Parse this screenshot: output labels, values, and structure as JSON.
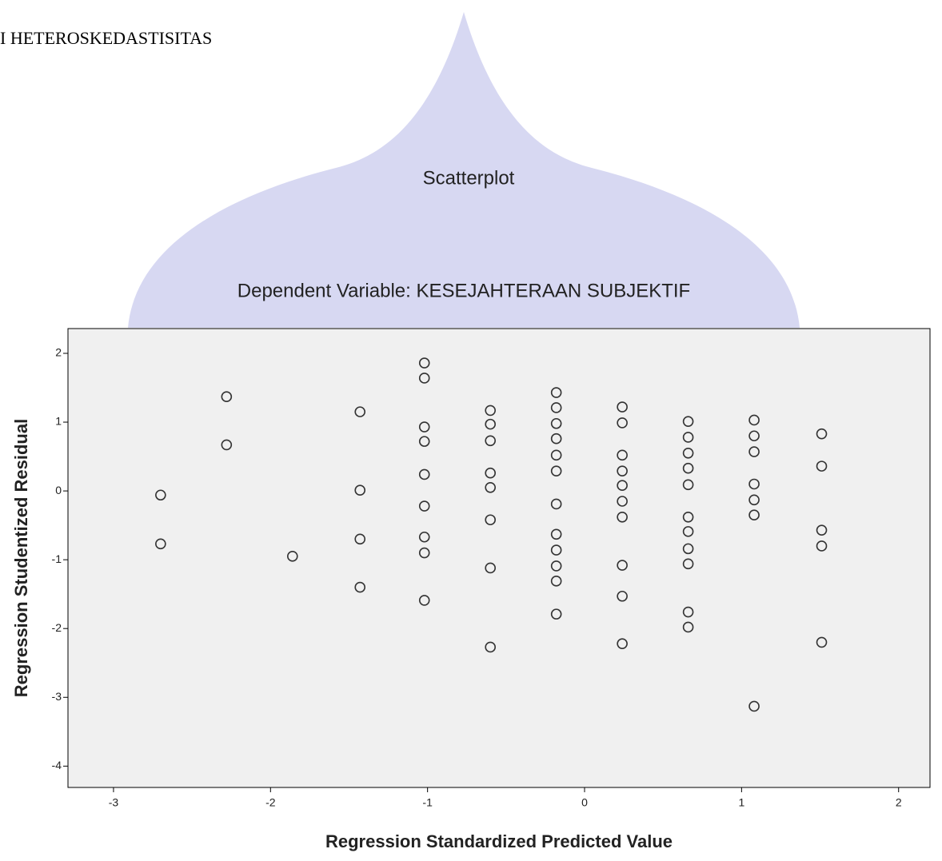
{
  "heading": "I HETEROSKEDASTISITAS",
  "chart_data": {
    "type": "scatter",
    "title": "Scatterplot",
    "subtitle": "Dependent Variable: KESEJAHTERAAN SUBJEKTIF",
    "x_label": "Regression Standardized Predicted Value",
    "y_label": "Regression Studentized Residual",
    "color": "#333333",
    "x": [
      -2.7,
      -2.7,
      -2.28,
      -2.28,
      -1.86,
      -1.43,
      -1.43,
      -1.43,
      -1.43,
      -1.02,
      -1.02,
      -1.02,
      -1.02,
      -1.02,
      -1.02,
      -1.02,
      -1.02,
      -1.02,
      -0.6,
      -0.6,
      -0.6,
      -0.6,
      -0.6,
      -0.6,
      -0.6,
      -0.6,
      -0.18,
      -0.18,
      -0.18,
      -0.18,
      -0.18,
      -0.18,
      -0.18,
      -0.18,
      -0.18,
      -0.18,
      -0.18,
      -0.18,
      0.24,
      0.24,
      0.24,
      0.24,
      0.24,
      0.24,
      0.24,
      0.24,
      0.24,
      0.24,
      0.66,
      0.66,
      0.66,
      0.66,
      0.66,
      0.66,
      0.66,
      0.66,
      0.66,
      0.66,
      0.66,
      1.08,
      1.08,
      1.08,
      1.08,
      1.08,
      1.08,
      1.08,
      1.51,
      1.51,
      1.51,
      1.51,
      1.51
    ],
    "values": [
      -0.06,
      -0.77,
      1.37,
      0.67,
      -0.95,
      1.15,
      0.01,
      -0.7,
      -1.4,
      1.86,
      1.64,
      0.93,
      0.72,
      0.24,
      -0.22,
      -0.67,
      -0.9,
      -1.59,
      1.17,
      0.97,
      0.73,
      0.26,
      0.05,
      -0.42,
      -1.12,
      -2.27,
      1.43,
      1.21,
      0.98,
      0.76,
      0.52,
      0.29,
      -0.19,
      -0.63,
      -0.86,
      -1.09,
      -1.31,
      -1.79,
      1.22,
      0.99,
      0.52,
      0.29,
      0.08,
      -0.15,
      -0.38,
      -1.08,
      -1.53,
      -2.22,
      1.01,
      0.78,
      0.55,
      0.33,
      0.09,
      -0.38,
      -0.59,
      -0.84,
      -1.06,
      -1.76,
      -1.98,
      1.03,
      0.8,
      0.57,
      0.1,
      -0.13,
      -0.35,
      -3.13,
      0.83,
      0.36,
      -0.57,
      -0.8,
      -2.2
    ],
    "xlim": [
      -3.29,
      2.2
    ],
    "xticks": [
      -3,
      -2,
      -1,
      0,
      1,
      2
    ],
    "ylim": [
      -4.31,
      2.36
    ],
    "yticks": [
      -4,
      -3,
      -2,
      -1,
      0,
      1,
      2
    ]
  }
}
